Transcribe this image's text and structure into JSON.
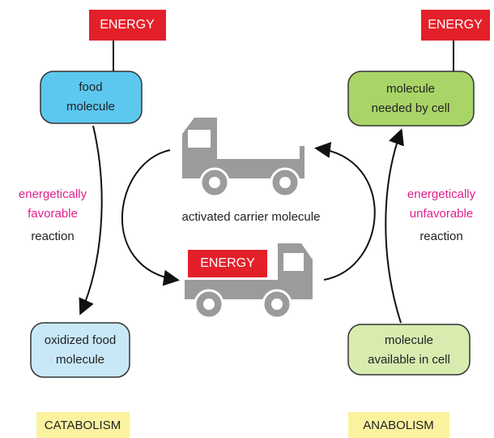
{
  "diagram": {
    "left_energy": "ENERGY",
    "food_molecule": [
      "food",
      "molecule"
    ],
    "left_reaction": {
      "lines": [
        "energetically",
        "favorable"
      ],
      "tail": "reaction"
    },
    "oxidized_food_molecule": [
      "oxidized food",
      "molecule"
    ],
    "catabolism": "CATABOLISM",
    "carrier_label": "activated carrier molecule",
    "truck_energy": "ENERGY",
    "right_energy": "ENERGY",
    "molecule_needed": [
      "molecule",
      "needed by cell"
    ],
    "right_reaction": {
      "lines": [
        "energetically",
        "unfavorable"
      ],
      "tail": "reaction"
    },
    "molecule_available": [
      "molecule",
      "available in cell"
    ],
    "anabolism": "ANABOLISM"
  }
}
